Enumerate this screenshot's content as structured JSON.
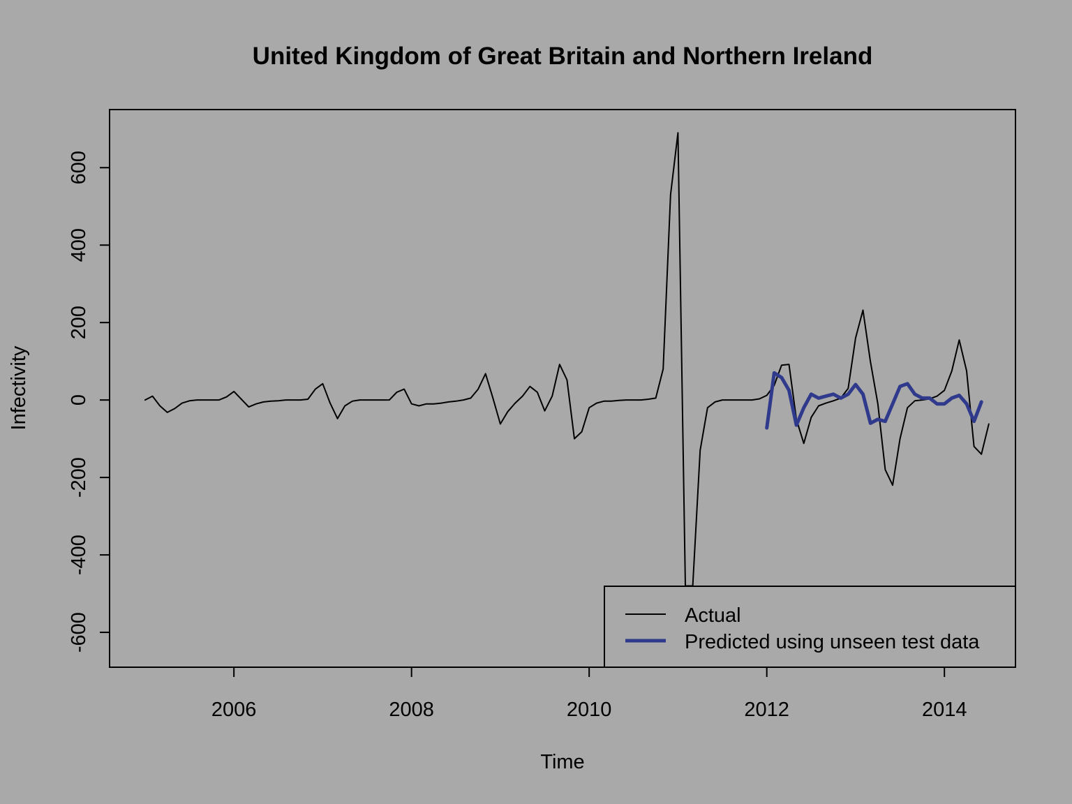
{
  "chart_data": {
    "type": "line",
    "title": "United Kingdom of Great Britain and Northern Ireland",
    "xlabel": "Time",
    "ylabel": "Infectivity",
    "xlim": [
      2004.6,
      2014.8
    ],
    "ylim": [
      -690,
      750
    ],
    "x_ticks": [
      2006,
      2008,
      2010,
      2012,
      2014
    ],
    "y_ticks": [
      -600,
      -400,
      -200,
      0,
      200,
      400,
      600
    ],
    "grid": false,
    "legend_position": "bottom-right",
    "series": [
      {
        "name": "Actual",
        "color": "#000000",
        "start": 2005.0,
        "step": 0.0833333,
        "values": [
          0,
          10,
          -15,
          -32,
          -22,
          -8,
          -2,
          0,
          0,
          0,
          0,
          8,
          22,
          2,
          -18,
          -10,
          -5,
          -3,
          -2,
          0,
          0,
          0,
          2,
          28,
          42,
          -8,
          -48,
          -15,
          -3,
          0,
          0,
          0,
          0,
          0,
          20,
          28,
          -10,
          -15,
          -10,
          -10,
          -8,
          -5,
          -3,
          0,
          5,
          28,
          68,
          5,
          -62,
          -30,
          -8,
          10,
          35,
          20,
          -28,
          10,
          92,
          52,
          -100,
          -82,
          -20,
          -8,
          -3,
          -3,
          -1,
          0,
          0,
          0,
          2,
          5,
          80,
          530,
          690,
          -480,
          -480,
          -130,
          -20,
          -5,
          0,
          0,
          0,
          0,
          0,
          3,
          12,
          38,
          90,
          92,
          -50,
          -112,
          -45,
          -15,
          -8,
          -2,
          5,
          30,
          160,
          232,
          100,
          -10,
          -180,
          -220,
          -100,
          -20,
          -2,
          0,
          3,
          10,
          25,
          75,
          155,
          75,
          -120,
          -140,
          -62
        ]
      },
      {
        "name": "Predicted using unseen test data",
        "color": "#303a8c",
        "start": 2012.0,
        "step": 0.0833333,
        "values": [
          -72,
          70,
          58,
          25,
          -65,
          -20,
          15,
          5,
          10,
          15,
          5,
          15,
          40,
          15,
          -60,
          -50,
          -55,
          -10,
          35,
          42,
          15,
          5,
          5,
          -10,
          -10,
          5,
          12,
          -10,
          -55,
          -5
        ]
      }
    ]
  }
}
